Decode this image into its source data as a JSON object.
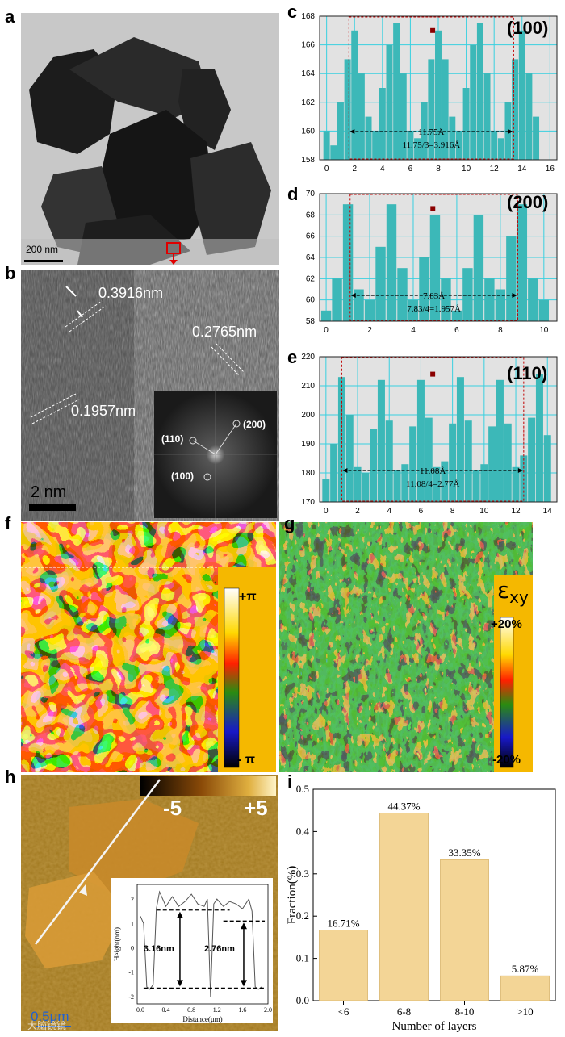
{
  "panels": {
    "a": {
      "letter": "a",
      "scalebar": "200 nm"
    },
    "b": {
      "letter": "b",
      "spacing1": "0.3916nm",
      "spacing2": "0.2765nm",
      "spacing3": "0.1957nm",
      "scalebar": "2  nm",
      "fft_labels": [
        "(110)",
        "(200)",
        "(100)"
      ]
    },
    "c": {
      "letter": "c",
      "plane": "(100)",
      "span": "11.75Å",
      "formula": "11.75/3=3.916Å"
    },
    "d": {
      "letter": "d",
      "plane": "(200)",
      "span": "7.83Å",
      "formula": "7.83/4=1.957Å"
    },
    "e": {
      "letter": "e",
      "plane": "(110)",
      "span": "11.08Å",
      "formula": "11.08/4=2.77Å"
    },
    "f": {
      "letter": "f",
      "colorbar_top": "+π",
      "colorbar_bottom": "- π"
    },
    "g": {
      "letter": "g",
      "symbol": "ε",
      "subscript": "xy",
      "colorbar_top": "+20%",
      "colorbar_bottom": "-20%"
    },
    "h": {
      "letter": "h",
      "scale_min": "-5",
      "scale_max": "+5",
      "scalebar": "0.5μm",
      "inset_xlabel": "Distance(μm)",
      "inset_ylabel": "Height(nm)",
      "step1": "3.16nm",
      "step2": "2.76nm"
    },
    "i": {
      "letter": "i"
    }
  },
  "watermark": "大脑镜镜",
  "chart_data": [
    {
      "type": "bar",
      "panel": "c",
      "x": [
        0,
        0.5,
        1,
        1.5,
        2,
        2.5,
        3,
        3.5,
        4,
        4.5,
        5,
        5.5,
        6,
        6.5,
        7,
        7.5,
        8,
        8.5,
        9,
        9.5,
        10,
        10.5,
        11,
        11.5,
        12,
        12.5,
        13,
        13.5,
        14,
        14.5,
        15
      ],
      "values": [
        160,
        159,
        162,
        165,
        167,
        164,
        161,
        160,
        163,
        166,
        167.5,
        164,
        160,
        159.5,
        162,
        165,
        167,
        165,
        161,
        160,
        163,
        166,
        167.5,
        164,
        160,
        159.5,
        162,
        165,
        167,
        164,
        161
      ],
      "xlim": [
        -0.5,
        16.5
      ],
      "ylim": [
        158,
        168
      ],
      "xticks": [
        "0",
        "2",
        "4",
        "6",
        "8",
        "10",
        "12",
        "14",
        "16"
      ],
      "yticks": [
        "158",
        "160",
        "162",
        "164",
        "166",
        "168"
      ]
    },
    {
      "type": "bar",
      "panel": "d",
      "x": [
        0,
        0.5,
        1,
        1.5,
        2,
        2.5,
        3,
        3.5,
        4,
        4.5,
        5,
        5.5,
        6,
        6.5,
        7,
        7.5,
        8,
        8.5,
        9,
        9.5,
        10
      ],
      "values": [
        59,
        62,
        69,
        61,
        60,
        65,
        69,
        63,
        60,
        64,
        68,
        62,
        59,
        63,
        68,
        62,
        61,
        66,
        69,
        62,
        60
      ],
      "xlim": [
        -0.3,
        10.6
      ],
      "ylim": [
        58,
        70
      ],
      "xticks": [
        "0",
        "2",
        "4",
        "6",
        "8",
        "10"
      ],
      "yticks": [
        "58",
        "60",
        "62",
        "64",
        "66",
        "68",
        "70"
      ]
    },
    {
      "type": "bar",
      "panel": "e",
      "x": [
        0,
        0.5,
        1,
        1.5,
        2,
        2.5,
        3,
        3.5,
        4,
        4.5,
        5,
        5.5,
        6,
        6.5,
        7,
        7.5,
        8,
        8.5,
        9,
        9.5,
        10,
        10.5,
        11,
        11.5,
        12,
        12.5,
        13,
        13.5,
        14
      ],
      "values": [
        178,
        190,
        213,
        200,
        182,
        180,
        195,
        212,
        198,
        181,
        183,
        196,
        212,
        199,
        182,
        184,
        197,
        213,
        198,
        181,
        183,
        196,
        212,
        197,
        182,
        186,
        199,
        214,
        193
      ],
      "xlim": [
        -0.4,
        14.6
      ],
      "ylim": [
        170,
        220
      ],
      "xticks": [
        "0",
        "2",
        "4",
        "6",
        "8",
        "10",
        "12",
        "14"
      ],
      "yticks": [
        "170",
        "180",
        "190",
        "200",
        "210",
        "220"
      ]
    },
    {
      "type": "bar",
      "panel": "i",
      "categories": [
        "<6",
        "6-8",
        "8-10",
        ">10"
      ],
      "values": [
        0.1671,
        0.4437,
        0.3335,
        0.0587
      ],
      "labels": [
        "16.71%",
        "44.37%",
        "33.35%",
        "5.87%"
      ],
      "xlabel": "Number of layers",
      "ylabel": "Fraction(%)",
      "ylim": [
        0,
        0.5
      ],
      "yticks": [
        "0.0",
        "0.1",
        "0.2",
        "0.3",
        "0.4",
        "0.5"
      ]
    },
    {
      "type": "line",
      "panel": "h-inset",
      "x": [
        0,
        0.05,
        0.1,
        0.15,
        0.2,
        0.25,
        0.3,
        0.4,
        0.5,
        0.6,
        0.7,
        0.8,
        0.9,
        1.0,
        1.05,
        1.1,
        1.15,
        1.2,
        1.3,
        1.4,
        1.5,
        1.6,
        1.7,
        1.75,
        1.8,
        1.85,
        1.9
      ],
      "values": [
        1.3,
        1.0,
        -1.6,
        -1.7,
        -1.5,
        1.6,
        2.3,
        1.7,
        2.1,
        1.7,
        1.9,
        2.2,
        1.8,
        1.7,
        2.0,
        -2.0,
        1.8,
        2.0,
        1.7,
        1.9,
        1.8,
        1.6,
        2.0,
        1.5,
        -1.6,
        -1.7,
        -1.6
      ],
      "xlim": [
        -0.05,
        2.0
      ],
      "ylim": [
        -2.3,
        2.6
      ],
      "xticks": [
        "0.0",
        "0.4",
        "0.8",
        "1.2",
        "1.6",
        "2.0"
      ],
      "yticks": [
        "-2",
        "-1",
        "0",
        "1",
        "2"
      ],
      "xlabel": "Distance(μm)",
      "ylabel": "Height(nm)"
    }
  ]
}
